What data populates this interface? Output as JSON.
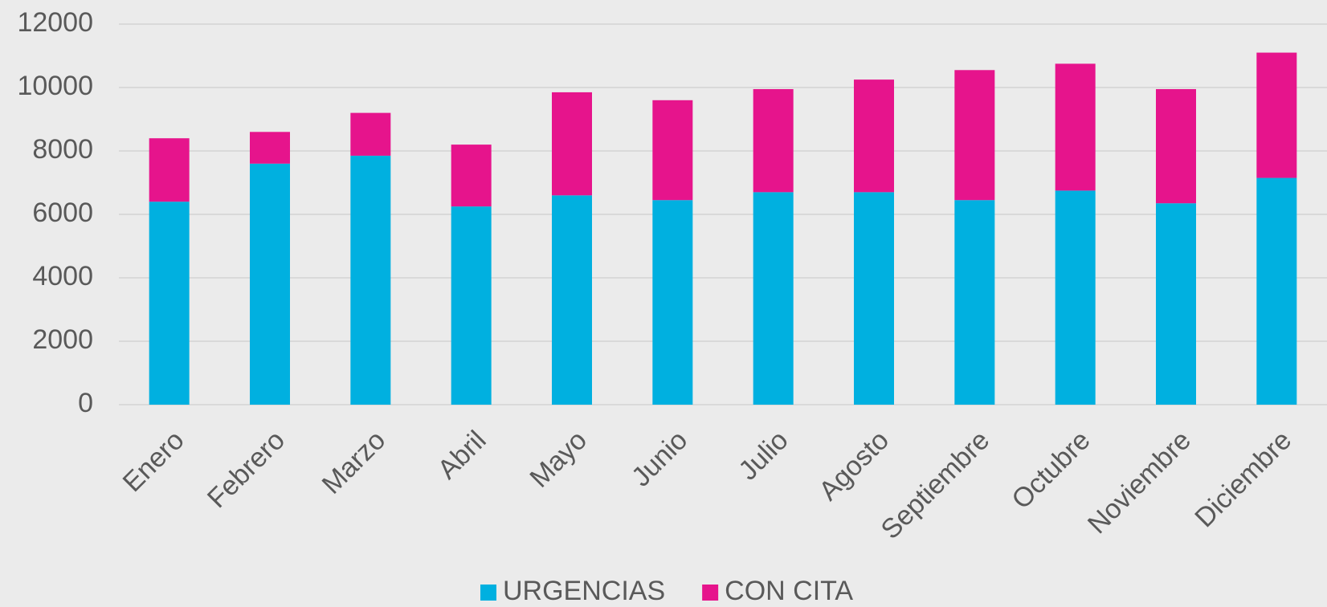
{
  "chart_data": {
    "type": "stacked_bar",
    "categories": [
      "Enero",
      "Febrero",
      "Marzo",
      "Abril",
      "Mayo",
      "Junio",
      "Julio",
      "Agosto",
      "Septiembre",
      "Octubre",
      "Noviembre",
      "Diciembre"
    ],
    "series": [
      {
        "name": "URGENCIAS",
        "color": "#00b0e0",
        "values": [
          6400,
          7600,
          7850,
          6250,
          6600,
          6450,
          6700,
          6700,
          6450,
          6750,
          6350,
          7150
        ]
      },
      {
        "name": "CON CITA",
        "color": "#e6148c",
        "values": [
          2000,
          1000,
          1350,
          1950,
          3250,
          3150,
          3250,
          3550,
          4100,
          4000,
          3600,
          3950
        ]
      }
    ],
    "ylim": [
      0,
      12000
    ],
    "yticks": [
      0,
      2000,
      4000,
      6000,
      8000,
      10000,
      12000
    ],
    "grid": true,
    "legend": "bottom"
  }
}
